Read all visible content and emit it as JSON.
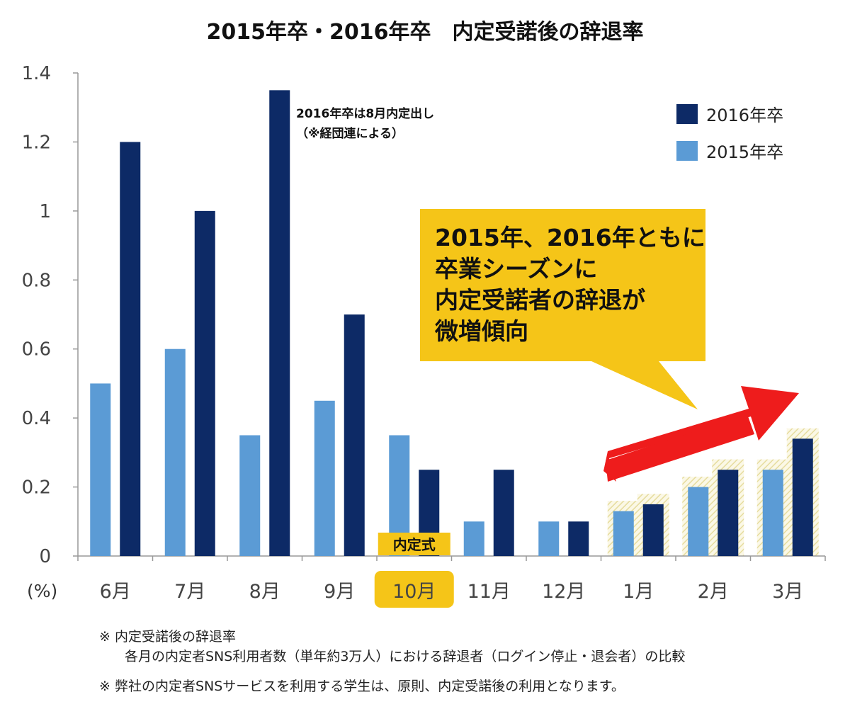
{
  "chart_data": {
    "type": "bar",
    "title": "2015年卒・2016年卒　内定受諾後の辞退率",
    "ylabel": "(%)",
    "ylim": [
      0,
      1.4
    ],
    "yticks": [
      "0",
      "0.2",
      "0.4",
      "0.6",
      "0.8",
      "1",
      "1.2",
      "1.4"
    ],
    "categories": [
      "6月",
      "7月",
      "8月",
      "9月",
      "10月",
      "11月",
      "12月",
      "1月",
      "2月",
      "3月"
    ],
    "highlighted_category": "10月",
    "series": [
      {
        "name": "2015年卒",
        "color": "#5b9bd5",
        "values": [
          0.5,
          0.6,
          0.35,
          0.45,
          0.35,
          0.1,
          0.1,
          0.13,
          0.2,
          0.25
        ]
      },
      {
        "name": "2016年卒",
        "color": "#0d2a66",
        "values": [
          1.2,
          1.0,
          1.35,
          0.7,
          0.25,
          0.25,
          0.1,
          0.15,
          0.25,
          0.34
        ]
      }
    ],
    "legend_position": "top-right",
    "grid": false,
    "annotations": {
      "aug_note": [
        "2016年卒は8月内定出し",
        "（※経団連による）"
      ],
      "ceremony_label": "内定式",
      "callout": [
        "2015年、2016年ともに",
        "卒業シーズンに",
        "内定受諾者の辞退が",
        "微増傾向"
      ]
    }
  },
  "colors": {
    "highlight_yellow": "#f5c518",
    "arrow_red": "#ee1c1c",
    "hatch": "#f3eec0"
  },
  "footnotes": [
    "※ 内定受諾後の辞退率",
    "各月の内定者SNS利用者数（単年約3万人）における辞退者（ログイン停止・退会者）の比較",
    "※ 弊社の内定者SNSサービスを利用する学生は、原則、内定受諾後の利用となります。"
  ]
}
